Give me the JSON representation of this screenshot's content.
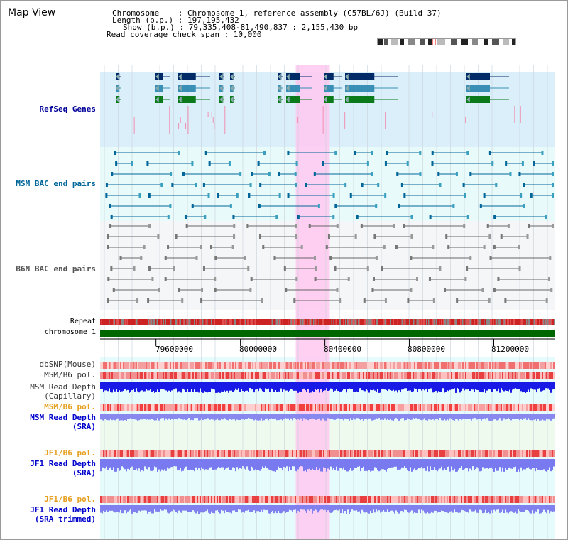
{
  "title": "Map View",
  "info": {
    "chromosome": "Chromosome    : Chromosome 1, reference assembly (C57BL/6J) (Build 37)",
    "length": "Length (b.p.) : 197,195,432",
    "show": "Show (b.p.) : 79,335,408-81,490,837 : 2,155,430 bp",
    "coverage": "Read coverage check span : 10,000"
  },
  "colors": {
    "refseq_label": "#000099",
    "msm_label": "#006699",
    "b6n_label": "#555555",
    "orange_label": "#e6a020",
    "blue_label": "#0000cc",
    "highlight": "#ffc8f0",
    "chromosome_bar": "#006600"
  },
  "tracks": {
    "refseq": "RefSeq Genes",
    "msm_bac": "MSM BAC end pairs",
    "b6n_bac": "B6N BAC end pairs",
    "repeat": "Repeat",
    "chromosome": "chromosome 1",
    "dbsnp": "dbSNP(Mouse)",
    "msm_b6_pol": "MSM/B6 pol.",
    "msm_read_depth_cap_1": "MSM Read Depth",
    "msm_read_depth_cap_2": "(Capillary)",
    "msm_b6_pol_2": "MSM/B6 pol.",
    "msm_read_depth_sra_1": "MSM Read Depth",
    "msm_read_depth_sra_2": "(SRA)",
    "jf1_b6_pol_1": "JF1/B6 pol.",
    "jf1_read_depth_sra_1": "JF1 Read Depth",
    "jf1_read_depth_sra_2": "(SRA)",
    "jf1_b6_pol_2": "JF1/B6 pol.",
    "jf1_read_depth_trim_1": "JF1 Read Depth",
    "jf1_read_depth_trim_2": "(SRA trimmed)"
  },
  "axis_ticks": [
    "79600000",
    "80000000",
    "80400000",
    "80800000",
    "81200000"
  ],
  "axis_tick_values": [
    79600000,
    80000000,
    80400000,
    80800000,
    81200000
  ],
  "range": [
    79335408,
    81490837
  ],
  "highlight_range": [
    80262000,
    80423000
  ]
}
